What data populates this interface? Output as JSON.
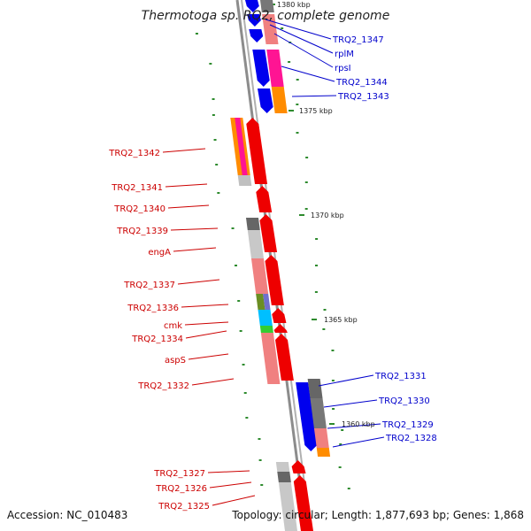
{
  "title": "Thermotoga sp. RQ2, complete genome",
  "accession": "Accession: NC_010483",
  "topology": "Topology: circular; Length: 1,877,693 bp; Genes: 1,868",
  "colors": {
    "forward_label": "#0000cc",
    "reverse_label": "#cc0000",
    "backbone": "#8c8c8c",
    "tick": "#2e8b2e"
  },
  "scale_labels": [
    {
      "text": "1380 kbp"
    },
    {
      "text": "1375 kbp"
    },
    {
      "text": "1370 kbp"
    },
    {
      "text": "1365 kbp"
    },
    {
      "text": "1360 kbp"
    }
  ],
  "forward_labels": [
    "TRQ2_1347",
    "rplM",
    "rpsI",
    "TRQ2_1344",
    "TRQ2_1343",
    "TRQ2_1331",
    "TRQ2_1330",
    "TRQ2_1329",
    "TRQ2_1328"
  ],
  "reverse_labels": [
    "TRQ2_1342",
    "TRQ2_1341",
    "TRQ2_1340",
    "TRQ2_1339",
    "engA",
    "TRQ2_1337",
    "TRQ2_1336",
    "cmk",
    "TRQ2_1334",
    "aspS",
    "TRQ2_1332",
    "TRQ2_1327",
    "TRQ2_1326",
    "TRQ2_1325"
  ]
}
